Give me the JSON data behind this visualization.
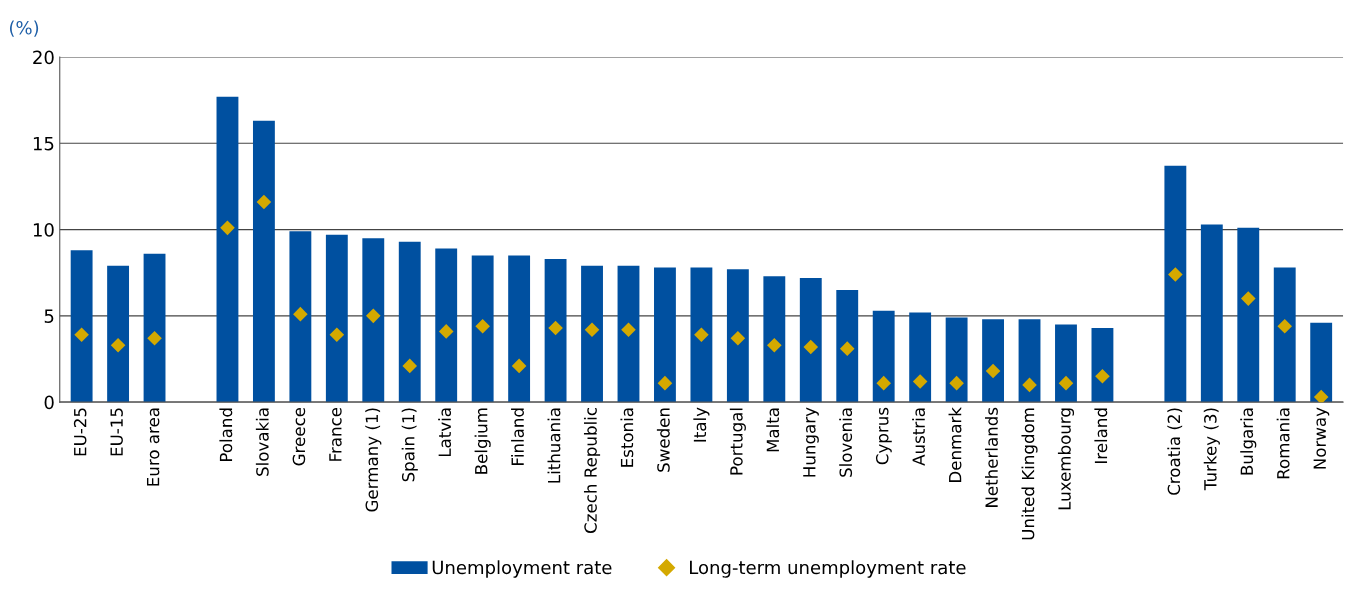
{
  "chart_data": {
    "type": "bar",
    "ylabel": "(%)",
    "categories": [
      "EU-25",
      "EU-15",
      "Euro area",
      null,
      "Poland",
      "Slovakia",
      "Greece",
      "France",
      "Germany (1)",
      "Spain (1)",
      "Latvia",
      "Belgium",
      "Finland",
      "Lithuania",
      "Czech Republic",
      "Estonia",
      "Sweden",
      "Italy",
      "Portugal",
      "Malta",
      "Hungary",
      "Slovenia",
      "Cyprus",
      "Austria",
      "Denmark",
      "Netherlands",
      "United Kingdom",
      "Luxembourg",
      "Ireland",
      null,
      "Croatia (2)",
      "Turkey (3)",
      "Bulgaria",
      "Romania",
      "Norway"
    ],
    "series": [
      {
        "name": "Unemployment rate",
        "color": "#0050a0",
        "values": [
          8.8,
          7.9,
          8.6,
          null,
          17.7,
          16.3,
          9.9,
          9.7,
          9.5,
          9.3,
          8.9,
          8.5,
          8.5,
          8.3,
          7.9,
          7.9,
          7.8,
          7.8,
          7.7,
          7.3,
          7.2,
          6.5,
          5.3,
          5.2,
          4.9,
          4.8,
          4.8,
          4.5,
          4.3,
          null,
          13.7,
          10.3,
          10.1,
          7.8,
          4.6
        ]
      },
      {
        "name": "Long-term unemployment rate",
        "type": "scatter",
        "color": "#d4a900",
        "marker": "diamond",
        "values": [
          3.9,
          3.3,
          3.7,
          null,
          10.1,
          11.6,
          5.1,
          3.9,
          5.0,
          2.1,
          4.1,
          4.4,
          2.1,
          4.3,
          4.2,
          4.2,
          1.1,
          3.9,
          3.7,
          3.3,
          3.2,
          3.1,
          1.1,
          1.2,
          1.1,
          1.8,
          1.0,
          1.1,
          1.5,
          null,
          7.4,
          null,
          6.0,
          4.4,
          0.3
        ]
      }
    ],
    "ylim": [
      0,
      20
    ],
    "yticks": [
      0,
      5,
      10,
      15,
      20
    ],
    "grid": "y",
    "legend": "bottom"
  }
}
